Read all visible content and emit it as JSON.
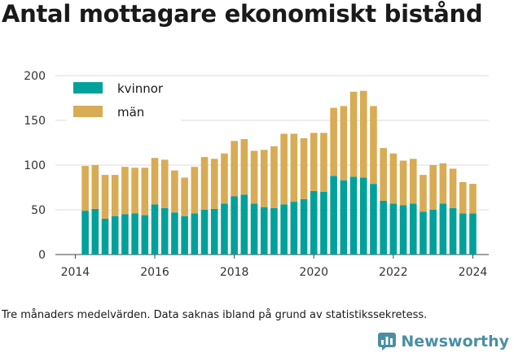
{
  "title": "Antal mottagare ekonomiskt bistånd",
  "caption": "Tre månaders medelvärden. Data saknas ibland på grund av statistikssekretess.",
  "brand": {
    "name": "Newsworthy",
    "icon": "newsworthy-logo-icon",
    "color": "#4a8fa3"
  },
  "chart_data": {
    "type": "bar",
    "stacked": true,
    "title": "",
    "xlabel": "",
    "ylabel": "",
    "ylim": [
      0,
      200
    ],
    "yticks": [
      0,
      50,
      100,
      150,
      200
    ],
    "xticks": [
      "2014",
      "2016",
      "2018",
      "2020",
      "2022",
      "2024"
    ],
    "xlim": [
      2013.5,
      2024.4
    ],
    "grid": true,
    "legend_position": "top-left",
    "x": [
      2014.25,
      2014.5,
      2014.75,
      2015.0,
      2015.25,
      2015.5,
      2015.75,
      2016.0,
      2016.25,
      2016.5,
      2016.75,
      2017.0,
      2017.25,
      2017.5,
      2017.75,
      2018.0,
      2018.25,
      2018.5,
      2018.75,
      2019.0,
      2019.25,
      2019.5,
      2019.75,
      2020.0,
      2020.25,
      2020.5,
      2020.75,
      2021.0,
      2021.25,
      2021.5,
      2021.75,
      2022.0,
      2022.25,
      2022.5,
      2022.75,
      2023.0,
      2023.25,
      2023.5,
      2023.75,
      2024.0
    ],
    "series": [
      {
        "name": "kvinnor",
        "color": "#00a19a",
        "values": [
          49,
          51,
          40,
          43,
          45,
          46,
          44,
          56,
          52,
          47,
          43,
          46,
          50,
          51,
          57,
          65,
          67,
          57,
          53,
          52,
          56,
          59,
          62,
          71,
          70,
          88,
          83,
          87,
          86,
          79,
          60,
          57,
          55,
          57,
          48,
          50,
          57,
          52,
          46,
          46
        ]
      },
      {
        "name": "män",
        "color": "#d8ab55",
        "values": [
          50,
          49,
          49,
          46,
          53,
          51,
          53,
          52,
          54,
          47,
          43,
          52,
          59,
          56,
          56,
          62,
          62,
          59,
          64,
          69,
          79,
          76,
          68,
          65,
          66,
          76,
          83,
          95,
          97,
          87,
          59,
          56,
          50,
          50,
          41,
          50,
          45,
          44,
          35,
          33
        ]
      }
    ]
  }
}
